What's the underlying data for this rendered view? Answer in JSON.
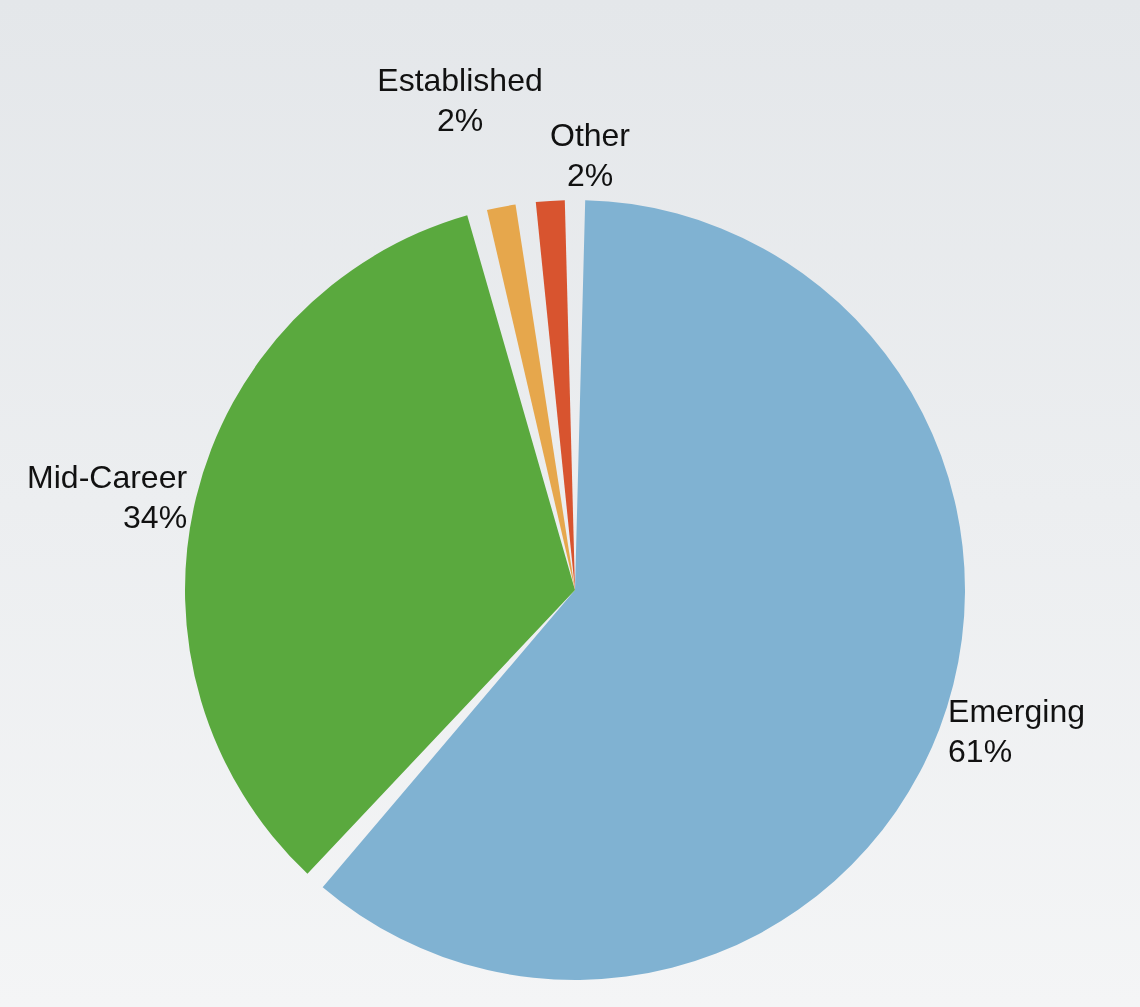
{
  "chart_data": {
    "type": "pie",
    "categories": [
      "Emerging",
      "Mid-Career",
      "Established",
      "Other"
    ],
    "values": [
      61,
      34,
      2,
      2
    ],
    "colors": [
      "#80b2d2",
      "#5aa93e",
      "#e6a74c",
      "#d8542f"
    ],
    "value_labels": [
      "61%",
      "34%",
      "2%",
      "2%"
    ],
    "legend": false
  }
}
